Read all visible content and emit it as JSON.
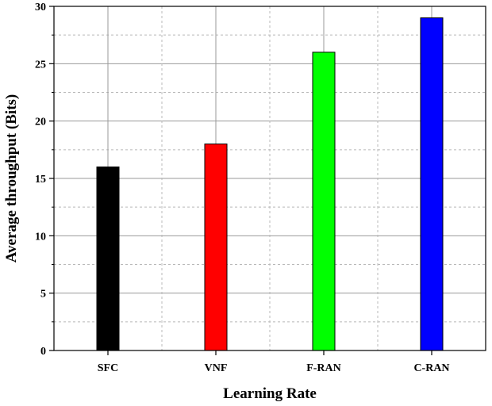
{
  "chart_data": {
    "type": "bar",
    "title": "",
    "xlabel": "Learning Rate",
    "ylabel": "Average throughput (Bits)",
    "categories": [
      "SFC",
      "VNF",
      "F-RAN",
      "C-RAN"
    ],
    "values": [
      16,
      18,
      26,
      29
    ],
    "colors": [
      "#000000",
      "#ff0000",
      "#00ff00",
      "#0000ff"
    ],
    "ylim": [
      0,
      30
    ],
    "yticks": [
      0,
      5,
      10,
      15,
      20,
      25,
      30
    ],
    "grid": true,
    "legend": "none"
  }
}
